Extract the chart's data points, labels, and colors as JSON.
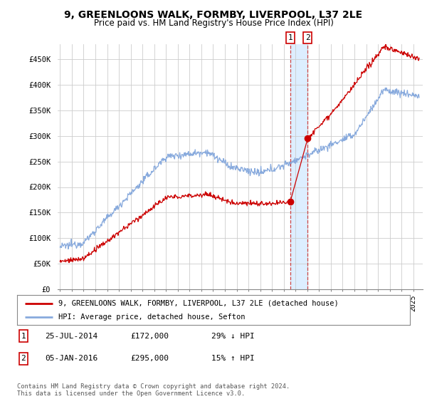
{
  "title": "9, GREENLOONS WALK, FORMBY, LIVERPOOL, L37 2LE",
  "subtitle": "Price paid vs. HM Land Registry's House Price Index (HPI)",
  "ylim": [
    0,
    480000
  ],
  "yticks": [
    0,
    50000,
    100000,
    150000,
    200000,
    250000,
    300000,
    350000,
    400000,
    450000
  ],
  "ytick_labels": [
    "£0",
    "£50K",
    "£100K",
    "£150K",
    "£200K",
    "£250K",
    "£300K",
    "£350K",
    "£400K",
    "£450K"
  ],
  "legend_line1": "9, GREENLOONS WALK, FORMBY, LIVERPOOL, L37 2LE (detached house)",
  "legend_line2": "HPI: Average price, detached house, Sefton",
  "transaction1_label": "1",
  "transaction1_date": "25-JUL-2014",
  "transaction1_price": "£172,000",
  "transaction1_hpi": "29% ↓ HPI",
  "transaction2_label": "2",
  "transaction2_date": "05-JAN-2016",
  "transaction2_price": "£295,000",
  "transaction2_hpi": "15% ↑ HPI",
  "footer": "Contains HM Land Registry data © Crown copyright and database right 2024.\nThis data is licensed under the Open Government Licence v3.0.",
  "property_color": "#cc0000",
  "hpi_color": "#88aadd",
  "vline_color": "#cc4444",
  "shade_color": "#ddeeff",
  "grid_color": "#cccccc",
  "background_color": "#ffffff",
  "transaction1_year": 2014.56,
  "transaction2_year": 2016.03,
  "transaction1_price_val": 172000,
  "transaction2_price_val": 295000
}
